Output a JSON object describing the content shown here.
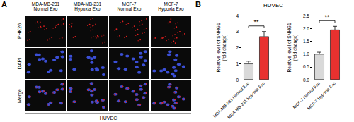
{
  "panels": {
    "A": {
      "label": "A",
      "columns": [
        "MDA-MB-231\nNormal Exo",
        "MDA-MB-231\nHypoxia Exo",
        "MCF-7\nNormal Exo",
        "MCF-7\nHypoxia Exo"
      ],
      "rows": [
        "PHK26",
        "DAPI",
        "Merge"
      ],
      "footer": "HUVEC"
    },
    "B": {
      "label": "B",
      "header": "HUVEC"
    }
  },
  "chart_data": [
    {
      "type": "bar",
      "categories": [
        "MDA-MB-231 Normal Exo",
        "MDA-MB-231 Hypoxia Exo"
      ],
      "values": [
        1.0,
        2.7
      ],
      "errors": [
        0.15,
        0.3
      ],
      "colors": [
        "#d9d9d9",
        "#e8312f"
      ],
      "ylabel": "Relative level of SNHG1\n(fold change)",
      "ylim": [
        0,
        4
      ],
      "yticks": [
        0,
        1,
        2,
        3,
        4
      ],
      "annotation": "**"
    },
    {
      "type": "bar",
      "categories": [
        "MCF-7 Normal Exo",
        "MCF-7 Hypoxia Exo"
      ],
      "values": [
        1.0,
        1.95
      ],
      "errors": [
        0.07,
        0.13
      ],
      "colors": [
        "#d9d9d9",
        "#e8312f"
      ],
      "ylabel": "Relative level of SNHG1\n(fold change)",
      "ylim": [
        0,
        2.5
      ],
      "yticks": [
        {
          "value": 0,
          "label": "0.0"
        },
        0.5,
        {
          "value": 1,
          "label": "1.0"
        },
        1.5,
        {
          "value": 2,
          "label": "2.0"
        },
        2.5
      ],
      "annotation": "**"
    }
  ]
}
